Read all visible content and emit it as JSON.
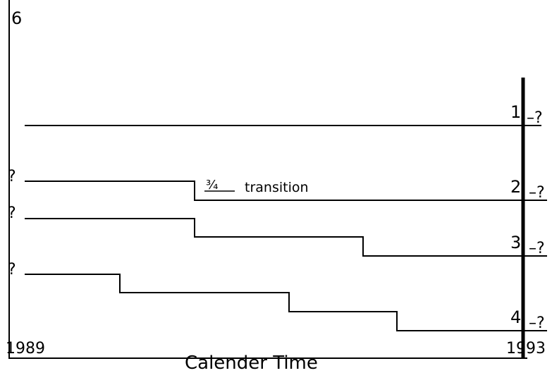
{
  "diagram": {
    "y_axis_top_label": "6",
    "x_start_label": "1989",
    "x_end_label": "1993",
    "x_axis_title": "Calender Time",
    "transition_fraction": "¾",
    "transition_label": "transition",
    "end_marker": "–?",
    "start_marker": "?",
    "lines": [
      {
        "id": "1",
        "label": "1",
        "start_marker": "",
        "end_marker": "–?"
      },
      {
        "id": "2",
        "label": "2",
        "start_marker": "?",
        "end_marker": "–?"
      },
      {
        "id": "3",
        "label": "3",
        "start_marker": "?",
        "end_marker": "–?"
      },
      {
        "id": "4",
        "label": "4",
        "start_marker": "?",
        "end_marker": "–?"
      }
    ]
  }
}
